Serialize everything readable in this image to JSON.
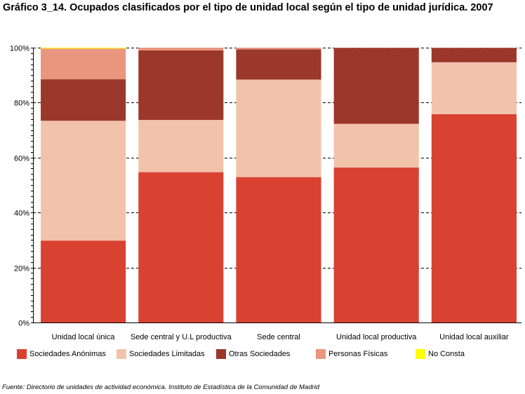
{
  "chart_data": {
    "type": "bar",
    "stacked": true,
    "title": "Gráfico 3_14. Ocupados clasificados por el tipo de unidad local según el tipo de unidad jurídica. 2007",
    "xlabel": "",
    "ylabel": "",
    "ylim": [
      0,
      100
    ],
    "yticks": [
      "0%",
      "20%",
      "40%",
      "60%",
      "80%",
      "100%"
    ],
    "grid": true,
    "legend_position": "bottom",
    "categories": [
      "Unidad local única",
      "Sede central y U.L productiva",
      "Sede central",
      "Unidad local productiva",
      "Unidad local auxiliar"
    ],
    "series": [
      {
        "name": "Sociedades Anónimas",
        "color": "#d94131",
        "values": [
          29.8,
          54.7,
          52.9,
          56.4,
          75.8
        ]
      },
      {
        "name": "Sociedades Limitadas",
        "color": "#f2c2ab",
        "values": [
          43.6,
          19.0,
          35.5,
          15.9,
          18.9
        ]
      },
      {
        "name": "Otras Sociedades",
        "color": "#9b372b",
        "values": [
          15.1,
          25.3,
          11.0,
          27.6,
          5.2
        ]
      },
      {
        "name": "Personas Físicas",
        "color": "#ea957e",
        "values": [
          11.2,
          1.0,
          0.6,
          0.1,
          0.1
        ]
      },
      {
        "name": "No Consta",
        "color": "#ffff00",
        "values": [
          0.3,
          0.0,
          0.0,
          0.0,
          0.0
        ]
      }
    ]
  },
  "source": "Fuente: Directorio de unidades de actividad económica. Instituto de Estadística de la Comunidad de Madrid"
}
